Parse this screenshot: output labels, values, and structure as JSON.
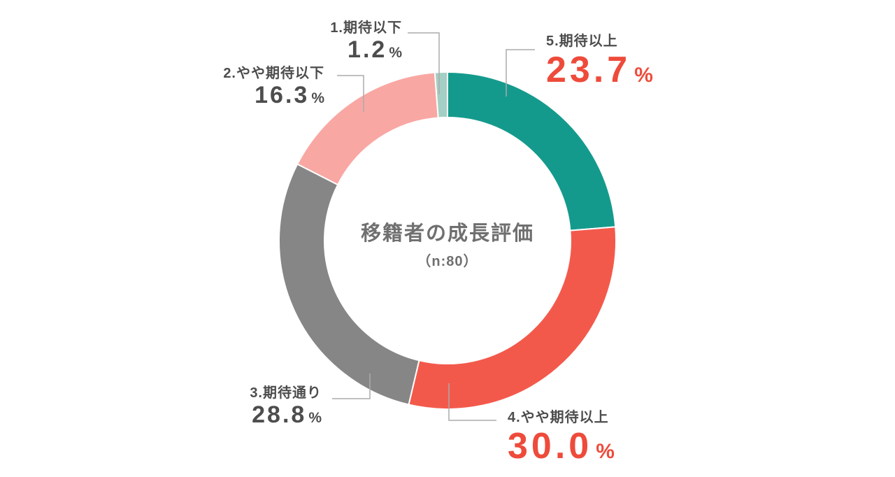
{
  "chart_data": {
    "type": "pie",
    "variant": "donut",
    "title": "移籍者の成長評価",
    "subtitle": "（n:80）",
    "sample_size": 80,
    "unit": "%",
    "order": "clockwise from 12 o'clock: 5 → 4 → 3 → 2 → 1",
    "legend_position": "callouts around ring",
    "segments": [
      {
        "key": "5-kitai-ijou",
        "label": "5.期待以上",
        "value": 23.7,
        "value_label": "23.7",
        "unit": "%",
        "color": "#149a8c",
        "value_color": "#ee4b3b"
      },
      {
        "key": "4-yaya-kitai-ijou",
        "label": "4.やや期待以上",
        "value": 30.0,
        "value_label": "30.0",
        "unit": "%",
        "color": "#f3594b",
        "value_color": "#ee4b3b"
      },
      {
        "key": "3-kitai-doori",
        "label": "3.期待通り",
        "value": 28.8,
        "value_label": "28.8",
        "unit": "%",
        "color": "#868686",
        "value_color": "#4d4d4d"
      },
      {
        "key": "2-yaya-kitai-ika",
        "label": "2.やや期待以下",
        "value": 16.3,
        "value_label": "16.3",
        "unit": "%",
        "color": "#f9a7a3",
        "value_color": "#4d4d4d"
      },
      {
        "key": "1-kitai-ika",
        "label": "1.期待以下",
        "value": 1.2,
        "value_label": "1.2",
        "unit": "%",
        "color": "#a4cfc4",
        "value_color": "#4d4d4d"
      }
    ]
  },
  "colors": {
    "background": "#ffffff",
    "center_text": "#6f6f6f",
    "label_text": "#4d4d4d",
    "emphasis_text": "#ee4b3b",
    "leader_line": "#ababab",
    "segment_gap": "#ffffff"
  }
}
